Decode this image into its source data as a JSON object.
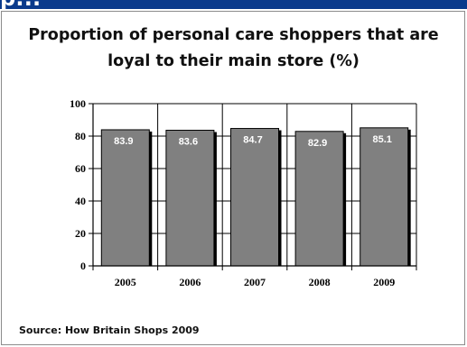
{
  "header": {
    "clipped_title": "p..."
  },
  "source": "Source: How Britain Shops 2009",
  "chart_data": {
    "type": "bar",
    "title_lines": [
      "Proportion of personal care shoppers that are",
      "loyal to their main store (%)"
    ],
    "xlabel": "",
    "ylabel": "",
    "categories": [
      "2005",
      "2006",
      "2007",
      "2008",
      "2009"
    ],
    "values": [
      83.9,
      83.6,
      84.7,
      82.9,
      85.1
    ],
    "data_labels": [
      "83.9",
      "83.6",
      "84.7",
      "82.9",
      "85.1"
    ],
    "ylim": [
      0,
      100
    ],
    "yticks": [
      0,
      20,
      40,
      60,
      80,
      100
    ],
    "grid": true,
    "colors": {
      "bar": "#808080",
      "bar_shadow": "#000000",
      "label_text": "#ffffff",
      "grid": "#000000"
    }
  }
}
